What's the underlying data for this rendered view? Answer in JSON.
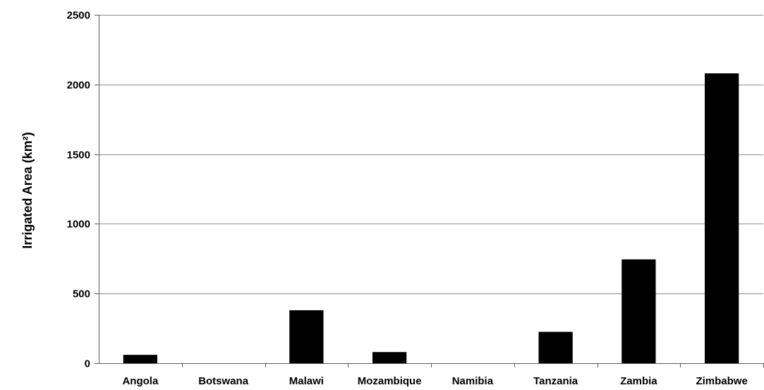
{
  "chart_data": {
    "type": "bar",
    "title": "",
    "xlabel": "",
    "ylabel": "Irrigated Area (km²)",
    "ylim": [
      0,
      2500
    ],
    "yticks": [
      0,
      500,
      1000,
      1500,
      2000,
      2500
    ],
    "grid": true,
    "legend": "none",
    "bar_color": "#000000",
    "grid_color": "#8c8c8c",
    "categories": [
      "Angola",
      "Botswana",
      "Malawi",
      "Mozambique",
      "Namibia",
      "Tanzania",
      "Zambia",
      "Zimbabwe"
    ],
    "values": [
      60,
      0,
      380,
      80,
      0,
      225,
      745,
      2080
    ]
  }
}
